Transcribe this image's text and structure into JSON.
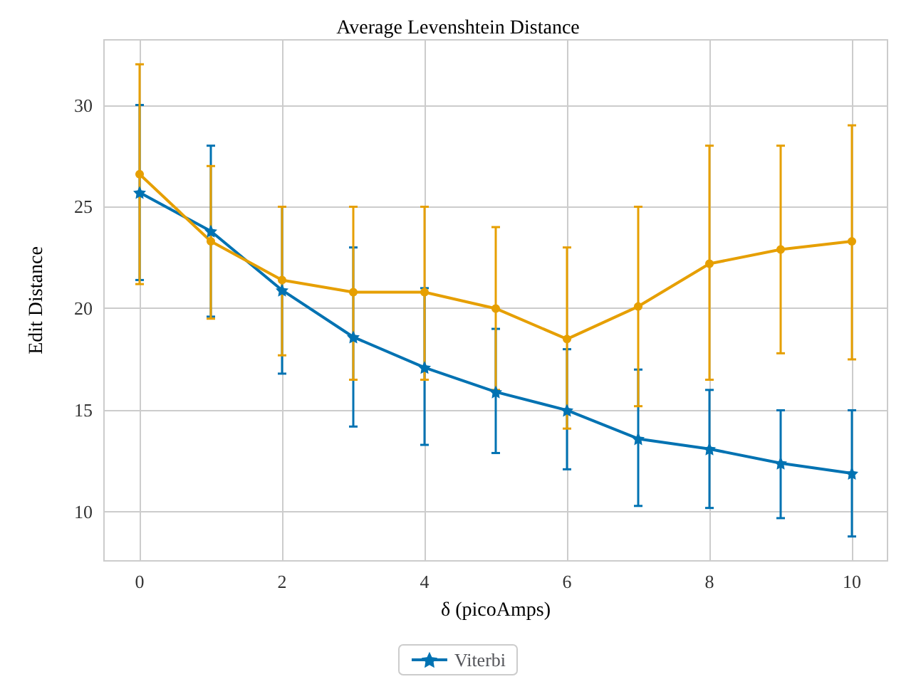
{
  "chart_data": {
    "type": "line",
    "title": "Average Levenshtein Distance",
    "xlabel": "δ (picoAmps)",
    "ylabel": "Edit Distance",
    "x": [
      0,
      1,
      2,
      3,
      4,
      5,
      6,
      7,
      8,
      9,
      10
    ],
    "series": [
      {
        "name": "Viterbi",
        "color": "#0072b2",
        "marker": "star",
        "values": [
          25.7,
          23.8,
          20.9,
          18.6,
          17.1,
          15.9,
          15.0,
          13.6,
          13.1,
          12.4,
          11.9
        ],
        "errors": [
          [
            21.4,
            30
          ],
          [
            19.6,
            28
          ],
          [
            16.8,
            25
          ],
          [
            14.2,
            23
          ],
          [
            13.3,
            21
          ],
          [
            12.9,
            19
          ],
          [
            12.1,
            18
          ],
          [
            10.3,
            17
          ],
          [
            10.2,
            16
          ],
          [
            9.7,
            15
          ],
          [
            8.8,
            15
          ]
        ]
      },
      {
        "color": "#e69f00",
        "marker": "circle",
        "values": [
          26.6,
          23.3,
          21.4,
          20.8,
          20.8,
          20.0,
          18.5,
          20.1,
          22.2,
          22.9,
          23.3
        ],
        "errors": [
          [
            21.2,
            32
          ],
          [
            19.5,
            27
          ],
          [
            17.7,
            25
          ],
          [
            16.5,
            25
          ],
          [
            16.5,
            25
          ],
          [
            16.0,
            24
          ],
          [
            14.1,
            23
          ],
          [
            15.2,
            25
          ],
          [
            16.5,
            28
          ],
          [
            17.8,
            28
          ],
          [
            17.5,
            29
          ]
        ]
      }
    ],
    "xlim": [
      -0.5,
      10.5
    ],
    "xticks": [
      0,
      2,
      4,
      6,
      8,
      10
    ],
    "ylim": [
      7.6,
      33.2
    ],
    "yticks": [
      10,
      15,
      20,
      25,
      30
    ],
    "grid": true,
    "legend": "bottom",
    "line_style": "solid"
  }
}
